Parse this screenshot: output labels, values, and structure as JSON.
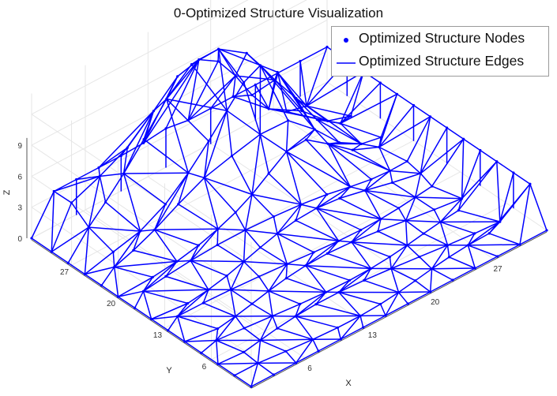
{
  "chart_data": {
    "type": "3d-wireframe",
    "title": "0-Optimized Structure Visualization",
    "xlabel": "X",
    "ylabel": "Y",
    "zlabel": "Z",
    "xticks": [
      "6",
      "13",
      "20",
      "27"
    ],
    "yticks": [
      "6",
      "13",
      "20",
      "27"
    ],
    "zticks": [
      "0",
      "3",
      "6",
      "9"
    ],
    "xlim": [
      0,
      33
    ],
    "ylim": [
      0,
      33
    ],
    "zlim": [
      0,
      11
    ],
    "grid": true,
    "legend_position": "top-right",
    "color": "#0000ff",
    "series": [
      {
        "name": "Optimized Structure Nodes",
        "marker": "dot"
      },
      {
        "name": "Optimized Structure Edges",
        "marker": "line"
      }
    ]
  }
}
